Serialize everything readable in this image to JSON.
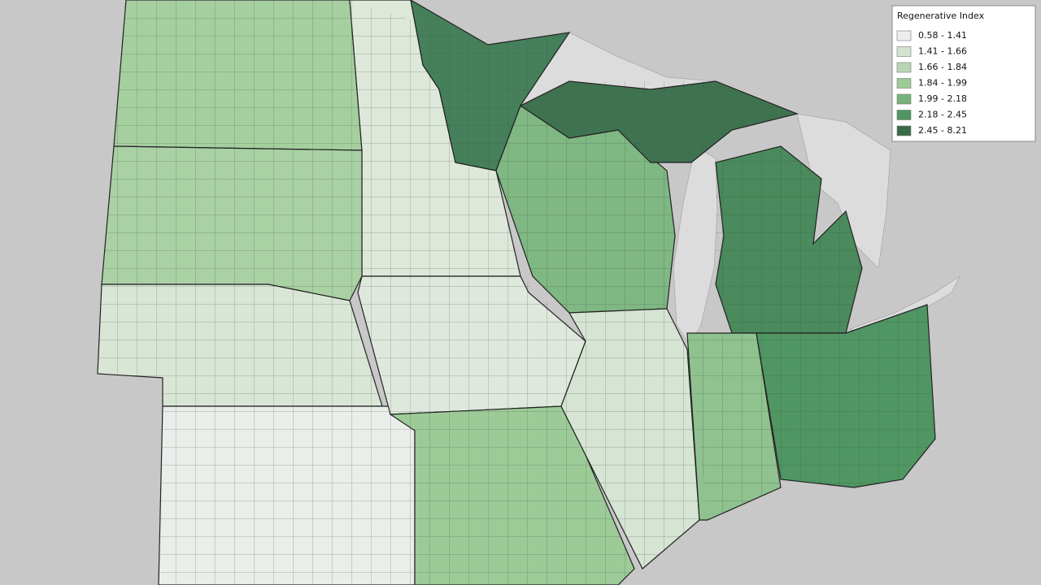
{
  "legend": {
    "title": "Regenerative Index",
    "items": [
      {
        "label": "0.58 - 1.41",
        "color": "#eeeeee"
      },
      {
        "label": "1.41 - 1.66",
        "color": "#d3e3d0"
      },
      {
        "label": "1.66 - 1.84",
        "color": "#b9d6b4"
      },
      {
        "label": "1.84 - 1.99",
        "color": "#9ccb98"
      },
      {
        "label": "1.99 - 2.18",
        "color": "#76b37a"
      },
      {
        "label": "2.18 - 2.45",
        "color": "#4f9663"
      },
      {
        "label": "2.45 - 8.21",
        "color": "#3a6b48"
      }
    ]
  }
}
